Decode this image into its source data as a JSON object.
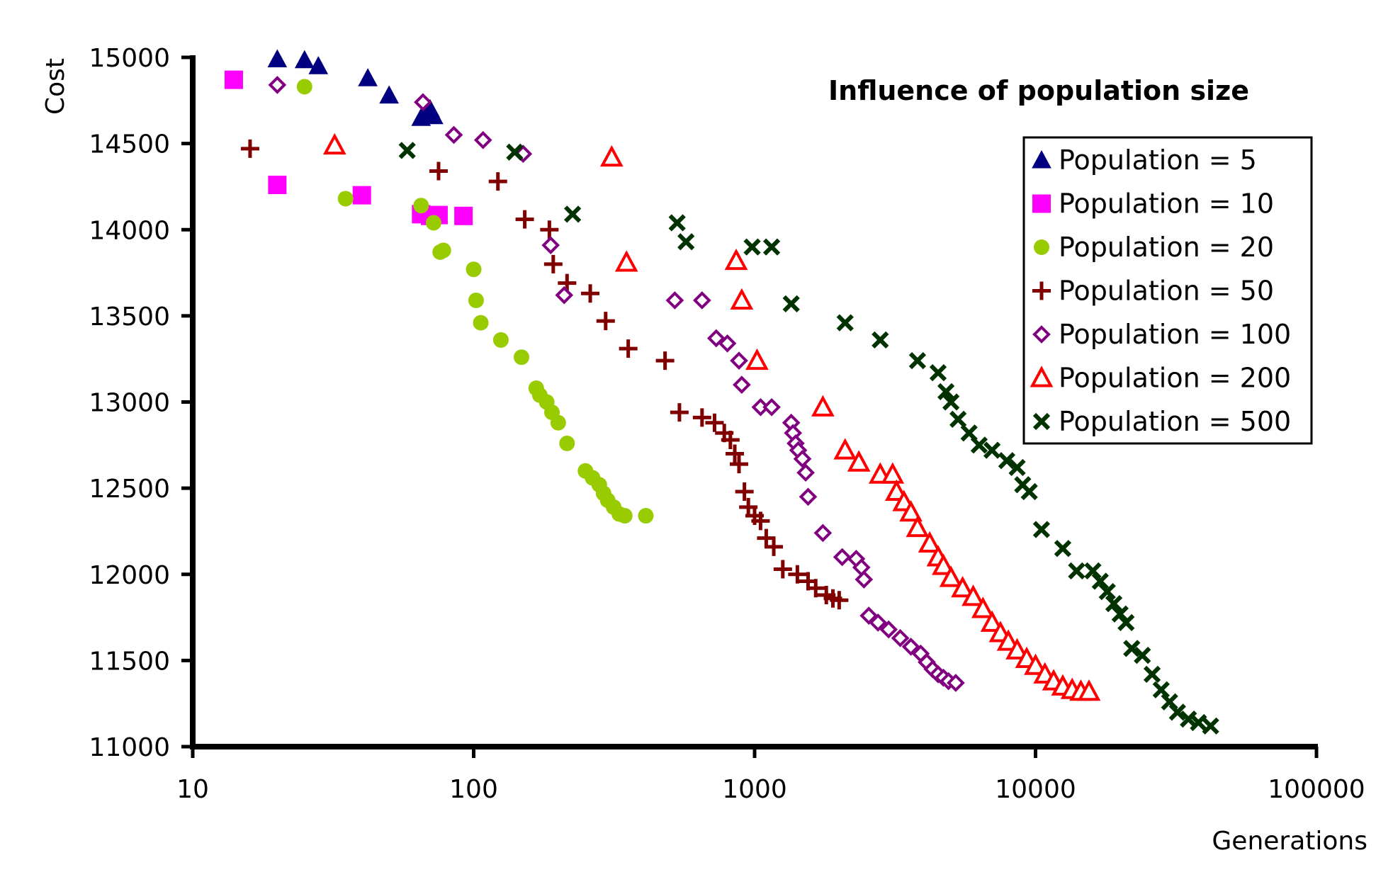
{
  "chart_data": {
    "type": "scatter",
    "title": "Influence of population size",
    "xlabel": "Generations",
    "ylabel": "Cost",
    "xscale": "log",
    "xlim": [
      10,
      100000
    ],
    "ylim": [
      11000,
      15000
    ],
    "x_ticks": [
      "10",
      "100",
      "1000",
      "10000",
      "100000"
    ],
    "y_ticks": [
      "11000",
      "11500",
      "12000",
      "12500",
      "13000",
      "13500",
      "14000",
      "14500",
      "15000"
    ],
    "grid": false,
    "legend_position": "top-right",
    "series": [
      {
        "name": "Population = 5",
        "marker": "filled-triangle",
        "color": "#000080",
        "points": [
          [
            20,
            14990
          ],
          [
            25,
            14985
          ],
          [
            28,
            14950
          ],
          [
            42,
            14880
          ],
          [
            50,
            14780
          ],
          [
            65,
            14650
          ],
          [
            68,
            14680
          ],
          [
            70,
            14700
          ],
          [
            72,
            14660
          ]
        ]
      },
      {
        "name": "Population = 10",
        "marker": "filled-square",
        "color": "#ff00ff",
        "points": [
          [
            14,
            14870
          ],
          [
            20,
            14260
          ],
          [
            40,
            14200
          ],
          [
            65,
            14090
          ],
          [
            70,
            14080
          ],
          [
            75,
            14085
          ],
          [
            92,
            14080
          ]
        ]
      },
      {
        "name": "Population = 20",
        "marker": "filled-circle",
        "color": "#99cc00",
        "points": [
          [
            25,
            14830
          ],
          [
            35,
            14180
          ],
          [
            65,
            14140
          ],
          [
            72,
            14040
          ],
          [
            76,
            13870
          ],
          [
            78,
            13880
          ],
          [
            100,
            13770
          ],
          [
            102,
            13590
          ],
          [
            106,
            13460
          ],
          [
            125,
            13360
          ],
          [
            148,
            13260
          ],
          [
            167,
            13080
          ],
          [
            172,
            13040
          ],
          [
            182,
            13000
          ],
          [
            190,
            12940
          ],
          [
            200,
            12880
          ],
          [
            215,
            12760
          ],
          [
            250,
            12600
          ],
          [
            265,
            12560
          ],
          [
            280,
            12520
          ],
          [
            290,
            12470
          ],
          [
            300,
            12430
          ],
          [
            315,
            12390
          ],
          [
            330,
            12350
          ],
          [
            345,
            12340
          ],
          [
            410,
            12340
          ]
        ]
      },
      {
        "name": "Population = 50",
        "marker": "plus",
        "color": "#800000",
        "points": [
          [
            16,
            14470
          ],
          [
            75,
            14340
          ],
          [
            122,
            14280
          ],
          [
            152,
            14060
          ],
          [
            186,
            14000
          ],
          [
            192,
            13800
          ],
          [
            215,
            13690
          ],
          [
            260,
            13630
          ],
          [
            295,
            13470
          ],
          [
            355,
            13310
          ],
          [
            480,
            13240
          ],
          [
            540,
            12940
          ],
          [
            650,
            12910
          ],
          [
            720,
            12880
          ],
          [
            780,
            12820
          ],
          [
            820,
            12780
          ],
          [
            850,
            12700
          ],
          [
            880,
            12640
          ],
          [
            920,
            12480
          ],
          [
            950,
            12390
          ],
          [
            1000,
            12340
          ],
          [
            1050,
            12310
          ],
          [
            1100,
            12210
          ],
          [
            1170,
            12160
          ],
          [
            1260,
            12030
          ],
          [
            1420,
            12000
          ],
          [
            1550,
            11960
          ],
          [
            1650,
            11920
          ],
          [
            1800,
            11880
          ],
          [
            1900,
            11860
          ],
          [
            2000,
            11850
          ]
        ]
      },
      {
        "name": "Population = 100",
        "marker": "open-diamond",
        "color": "#800080",
        "points": [
          [
            20,
            14840
          ],
          [
            66,
            14740
          ],
          [
            85,
            14550
          ],
          [
            108,
            14520
          ],
          [
            150,
            14440
          ],
          [
            188,
            13910
          ],
          [
            210,
            13620
          ],
          [
            520,
            13590
          ],
          [
            650,
            13590
          ],
          [
            730,
            13370
          ],
          [
            800,
            13340
          ],
          [
            880,
            13240
          ],
          [
            900,
            13100
          ],
          [
            1050,
            12970
          ],
          [
            1150,
            12970
          ],
          [
            1350,
            12880
          ],
          [
            1370,
            12820
          ],
          [
            1400,
            12760
          ],
          [
            1430,
            12720
          ],
          [
            1480,
            12670
          ],
          [
            1520,
            12590
          ],
          [
            1550,
            12450
          ],
          [
            1750,
            12240
          ],
          [
            2050,
            12100
          ],
          [
            2300,
            12090
          ],
          [
            2400,
            12040
          ],
          [
            2450,
            11970
          ],
          [
            2550,
            11760
          ],
          [
            2750,
            11720
          ],
          [
            3000,
            11680
          ],
          [
            3300,
            11630
          ],
          [
            3600,
            11580
          ],
          [
            3900,
            11540
          ],
          [
            4100,
            11490
          ],
          [
            4300,
            11450
          ],
          [
            4500,
            11420
          ],
          [
            4700,
            11400
          ],
          [
            4900,
            11380
          ],
          [
            5200,
            11370
          ]
        ]
      },
      {
        "name": "Population = 200",
        "marker": "open-triangle",
        "color": "#ff0000",
        "points": [
          [
            32,
            14490
          ],
          [
            310,
            14420
          ],
          [
            350,
            13810
          ],
          [
            860,
            13820
          ],
          [
            900,
            13590
          ],
          [
            1020,
            13240
          ],
          [
            1750,
            12970
          ],
          [
            2100,
            12720
          ],
          [
            2350,
            12650
          ],
          [
            2800,
            12580
          ],
          [
            3100,
            12580
          ],
          [
            3200,
            12480
          ],
          [
            3400,
            12420
          ],
          [
            3600,
            12360
          ],
          [
            3800,
            12270
          ],
          [
            4200,
            12180
          ],
          [
            4500,
            12100
          ],
          [
            4700,
            12050
          ],
          [
            5000,
            11980
          ],
          [
            5500,
            11920
          ],
          [
            6000,
            11870
          ],
          [
            6500,
            11800
          ],
          [
            7000,
            11720
          ],
          [
            7500,
            11660
          ],
          [
            8000,
            11610
          ],
          [
            8600,
            11560
          ],
          [
            9300,
            11510
          ],
          [
            10000,
            11470
          ],
          [
            10800,
            11420
          ],
          [
            11600,
            11380
          ],
          [
            12500,
            11350
          ],
          [
            13500,
            11330
          ],
          [
            14500,
            11320
          ],
          [
            15500,
            11320
          ]
        ]
      },
      {
        "name": "Population = 500",
        "marker": "x",
        "color": "#003300",
        "points": [
          [
            58,
            14460
          ],
          [
            140,
            14450
          ],
          [
            225,
            14090
          ],
          [
            530,
            14040
          ],
          [
            570,
            13930
          ],
          [
            980,
            13900
          ],
          [
            1150,
            13900
          ],
          [
            1350,
            13570
          ],
          [
            2100,
            13460
          ],
          [
            2800,
            13360
          ],
          [
            3800,
            13240
          ],
          [
            4500,
            13170
          ],
          [
            4800,
            13060
          ],
          [
            5000,
            13000
          ],
          [
            5300,
            12900
          ],
          [
            5800,
            12820
          ],
          [
            6300,
            12750
          ],
          [
            7000,
            12720
          ],
          [
            7900,
            12660
          ],
          [
            8600,
            12620
          ],
          [
            9000,
            12520
          ],
          [
            9500,
            12480
          ],
          [
            10500,
            12260
          ],
          [
            12500,
            12150
          ],
          [
            14000,
            12020
          ],
          [
            16000,
            12020
          ],
          [
            17000,
            11960
          ],
          [
            18000,
            11900
          ],
          [
            19000,
            11830
          ],
          [
            20000,
            11770
          ],
          [
            21000,
            11720
          ],
          [
            22000,
            11570
          ],
          [
            24000,
            11530
          ],
          [
            26000,
            11420
          ],
          [
            28000,
            11330
          ],
          [
            30000,
            11260
          ],
          [
            32000,
            11200
          ],
          [
            35000,
            11160
          ],
          [
            38000,
            11140
          ],
          [
            42000,
            11120
          ]
        ]
      }
    ]
  }
}
